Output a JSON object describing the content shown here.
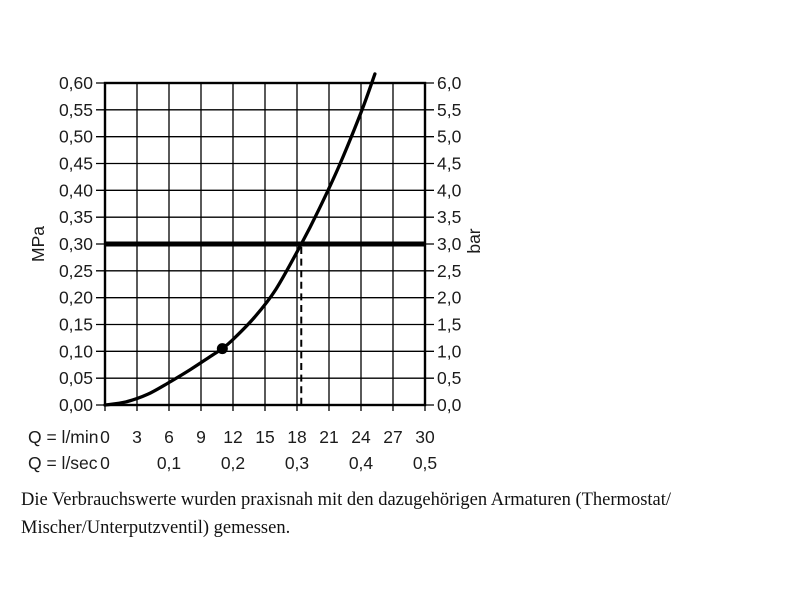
{
  "chart_data": {
    "type": "line",
    "x_axis": {
      "label_lmin": "Q = l/min",
      "label_lsec": "Q = l/sec",
      "range_lmin": [
        0,
        30
      ],
      "ticks_lmin": {
        "values": [
          0,
          3,
          6,
          9,
          12,
          15,
          18,
          21,
          24,
          27,
          30
        ],
        "labels": [
          "0",
          "3",
          "6",
          "9",
          "12",
          "15",
          "18",
          "21",
          "24",
          "27",
          "30"
        ]
      },
      "ticks_lsec": {
        "values": [
          0,
          6,
          12,
          18,
          24,
          30
        ],
        "labels": [
          "0",
          "0,1",
          "0,2",
          "0,3",
          "0,4",
          "0,5"
        ]
      }
    },
    "y_axis_left": {
      "unit": "MPa",
      "range": [
        0,
        0.6
      ],
      "ticks": {
        "values": [
          0.6,
          0.55,
          0.5,
          0.45,
          0.4,
          0.35,
          0.3,
          0.25,
          0.2,
          0.15,
          0.1,
          0.05,
          0.0
        ],
        "labels": [
          "0,60",
          "0,55",
          "0,50",
          "0,45",
          "0,40",
          "0,35",
          "0,30",
          "0,25",
          "0,20",
          "0,15",
          "0,10",
          "0,05",
          "0,00"
        ]
      }
    },
    "y_axis_right": {
      "unit": "bar",
      "range": [
        0,
        6
      ],
      "ticks": {
        "values": [
          6.0,
          5.5,
          5.0,
          4.5,
          4.0,
          3.5,
          3.0,
          2.5,
          2.0,
          1.5,
          1.0,
          0.5,
          0.0
        ],
        "labels": [
          "6,0",
          "5,5",
          "5,0",
          "4,5",
          "4,0",
          "3,5",
          "3,0",
          "2,5",
          "2,0",
          "1,5",
          "1,0",
          "0,5",
          "0,0"
        ]
      }
    },
    "grid": true,
    "legend": "none",
    "colors": {
      "line": "#000000",
      "text": "#1c1c1c",
      "background": "#ffffff"
    },
    "curve": {
      "points_lmin_mpa": [
        [
          0,
          0.0
        ],
        [
          2,
          0.006
        ],
        [
          4,
          0.02
        ],
        [
          6,
          0.042
        ],
        [
          8,
          0.066
        ],
        [
          10,
          0.092
        ],
        [
          11,
          0.105
        ],
        [
          12,
          0.122
        ],
        [
          14,
          0.163
        ],
        [
          16,
          0.215
        ],
        [
          18.4,
          0.3
        ],
        [
          20,
          0.362
        ],
        [
          22,
          0.448
        ],
        [
          24,
          0.545
        ],
        [
          25.3,
          0.617
        ]
      ]
    },
    "marker_point": {
      "lmin": 11.0,
      "mpa": 0.105
    },
    "reference_line": {
      "mpa": 0.3,
      "bar": 3.0
    },
    "dashed_line": {
      "lmin": 18.4,
      "to_mpa": 0.3
    }
  },
  "caption": {
    "line1": "Die Verbrauchswerte wurden praxisnah mit den dazugehörigen Armaturen (Thermostat/",
    "line2": "Mischer/Unterputzventil) gemessen."
  }
}
